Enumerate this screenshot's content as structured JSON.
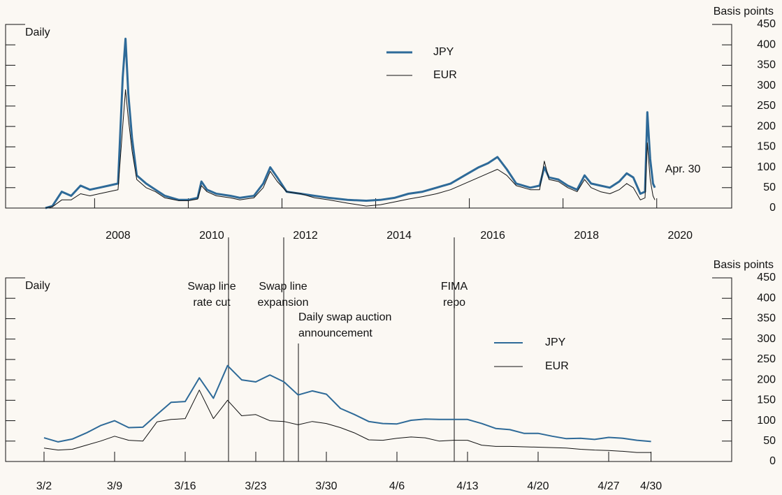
{
  "chart_data": [
    {
      "type": "line",
      "ylabel": "Basis points",
      "annotations": [
        {
          "text": "Daily"
        },
        {
          "text": "Apr. 30"
        }
      ],
      "xlim": [
        2006.1,
        2021.6
      ],
      "xticks": [
        {
          "value": 2008,
          "label": "2008"
        },
        {
          "value": 2010,
          "label": "2010"
        },
        {
          "value": 2012,
          "label": "2012"
        },
        {
          "value": 2014,
          "label": "2014"
        },
        {
          "value": 2016,
          "label": "2016"
        },
        {
          "value": 2018,
          "label": "2018"
        },
        {
          "value": 2020,
          "label": "2020"
        }
      ],
      "ylim": [
        0,
        450
      ],
      "yticks": [
        0,
        50,
        100,
        150,
        200,
        250,
        300,
        350,
        400,
        450
      ],
      "x": [
        2006.95,
        2007.1,
        2007.3,
        2007.5,
        2007.7,
        2007.9,
        2008.1,
        2008.3,
        2008.5,
        2008.6,
        2008.66,
        2008.72,
        2008.8,
        2008.9,
        2009.1,
        2009.3,
        2009.5,
        2009.8,
        2010.0,
        2010.2,
        2010.28,
        2010.4,
        2010.6,
        2010.9,
        2011.1,
        2011.4,
        2011.6,
        2011.75,
        2011.9,
        2012.1,
        2012.4,
        2012.7,
        2013.0,
        2013.4,
        2013.8,
        2014.1,
        2014.4,
        2014.7,
        2015.0,
        2015.3,
        2015.6,
        2015.9,
        2016.2,
        2016.4,
        2016.6,
        2016.8,
        2017.0,
        2017.3,
        2017.5,
        2017.6,
        2017.7,
        2017.9,
        2018.1,
        2018.3,
        2018.46,
        2018.6,
        2018.8,
        2019.0,
        2019.2,
        2019.36,
        2019.5,
        2019.65,
        2019.75,
        2019.8,
        2019.86,
        2019.92,
        2019.96
      ],
      "series": [
        {
          "name": "JPY",
          "color": "#2e6a98",
          "width": 3,
          "values": [
            0,
            5,
            40,
            30,
            55,
            45,
            50,
            55,
            60,
            320,
            415,
            280,
            170,
            80,
            60,
            45,
            30,
            20,
            20,
            25,
            65,
            45,
            35,
            30,
            25,
            30,
            60,
            100,
            75,
            40,
            35,
            30,
            25,
            20,
            18,
            20,
            25,
            35,
            40,
            50,
            60,
            80,
            100,
            110,
            125,
            95,
            60,
            50,
            55,
            100,
            75,
            70,
            55,
            45,
            80,
            60,
            55,
            50,
            65,
            85,
            75,
            35,
            40,
            235,
            120,
            60,
            50
          ]
        },
        {
          "name": "EUR",
          "color": "#111111",
          "width": 1,
          "values": [
            0,
            3,
            20,
            20,
            35,
            30,
            35,
            40,
            45,
            200,
            290,
            220,
            140,
            70,
            50,
            40,
            25,
            18,
            18,
            22,
            55,
            40,
            30,
            25,
            20,
            25,
            50,
            90,
            65,
            40,
            35,
            25,
            20,
            12,
            5,
            8,
            15,
            22,
            28,
            35,
            45,
            60,
            75,
            85,
            95,
            80,
            55,
            45,
            45,
            115,
            70,
            65,
            50,
            40,
            70,
            50,
            40,
            35,
            45,
            60,
            50,
            20,
            25,
            160,
            70,
            30,
            20
          ]
        }
      ]
    },
    {
      "type": "line",
      "ylabel": "Basis points",
      "annotations": [
        {
          "text": "Daily"
        }
      ],
      "events": [
        {
          "lines": [
            "Swap line",
            "rate cut"
          ]
        },
        {
          "lines": [
            "Swap line",
            "expansion"
          ]
        },
        {
          "lines": [
            "Daily swap auction",
            "announcement"
          ]
        },
        {
          "lines": [
            "FIMA",
            "repo"
          ]
        }
      ],
      "ylim": [
        0,
        450
      ],
      "yticks": [
        0,
        50,
        100,
        150,
        200,
        250,
        300,
        350,
        400,
        450
      ],
      "categories": [
        "3/2",
        null,
        null,
        null,
        null,
        "3/9",
        null,
        null,
        null,
        null,
        "3/16",
        null,
        null,
        null,
        null,
        "3/23",
        null,
        null,
        null,
        null,
        "3/30",
        null,
        null,
        null,
        null,
        "4/6",
        null,
        null,
        null,
        null,
        "4/13",
        null,
        null,
        null,
        null,
        "4/20",
        null,
        null,
        null,
        null,
        "4/27",
        null,
        null,
        "4/30"
      ],
      "series": [
        {
          "name": "JPY",
          "color": "#2e6a98",
          "width": 2,
          "values": [
            58,
            48,
            55,
            70,
            88,
            100,
            83,
            84,
            115,
            145,
            147,
            205,
            155,
            235,
            200,
            195,
            212,
            195,
            163,
            173,
            165,
            130,
            115,
            98,
            93,
            92,
            101,
            104,
            103,
            103,
            103,
            93,
            81,
            78,
            69,
            69,
            62,
            56,
            57,
            54,
            59,
            57,
            52,
            49
          ]
        },
        {
          "name": "EUR",
          "color": "#111111",
          "width": 1,
          "values": [
            33,
            28,
            30,
            40,
            50,
            62,
            52,
            50,
            97,
            103,
            105,
            175,
            105,
            150,
            112,
            115,
            100,
            98,
            90,
            98,
            93,
            83,
            70,
            53,
            52,
            57,
            60,
            58,
            50,
            52,
            52,
            40,
            37,
            37,
            36,
            35,
            34,
            33,
            30,
            28,
            27,
            25,
            22,
            22
          ]
        }
      ]
    }
  ]
}
